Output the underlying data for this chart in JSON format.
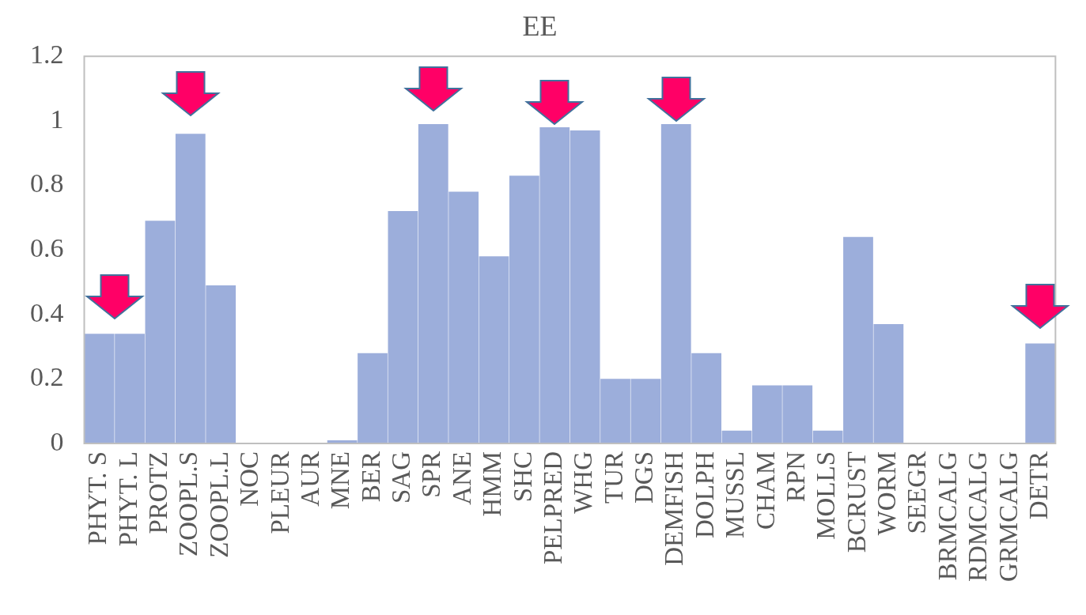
{
  "chart_data": {
    "type": "bar",
    "title": "EE",
    "categories": [
      "PHYT. S",
      "PHYT. L",
      "PROTZ",
      "ZOOPL.S",
      "ZOOPL.L",
      "NOC",
      "PLEUR",
      "AUR",
      "MNE",
      "BER",
      "SAG",
      "SPR",
      "ANE",
      "HMM",
      "SHC",
      "PELPRED",
      "WHG",
      "TUR",
      "DGS",
      "DEMFISH",
      "DOLPH",
      "MUSSL",
      "CHAM",
      "RPN",
      "MOLLS",
      "BCRUST",
      "WORM",
      "SEEGR",
      "BRMCALG",
      "RDMCALG",
      "GRMCALG",
      "DETR"
    ],
    "values": [
      0.34,
      0.34,
      0.69,
      0.96,
      0.49,
      0,
      0,
      0,
      0.01,
      0.28,
      0.72,
      0.99,
      0.78,
      0.58,
      0.83,
      0.98,
      0.97,
      0.2,
      0.2,
      0.99,
      0.28,
      0.04,
      0.18,
      0.18,
      0.04,
      0.64,
      0.37,
      0,
      0,
      0,
      0,
      0.31
    ],
    "color": "#9caedb",
    "ylim": [
      0,
      1.2
    ],
    "yticks": [
      0,
      0.2,
      0.4,
      0.6,
      0.8,
      1,
      1.2
    ]
  }
}
